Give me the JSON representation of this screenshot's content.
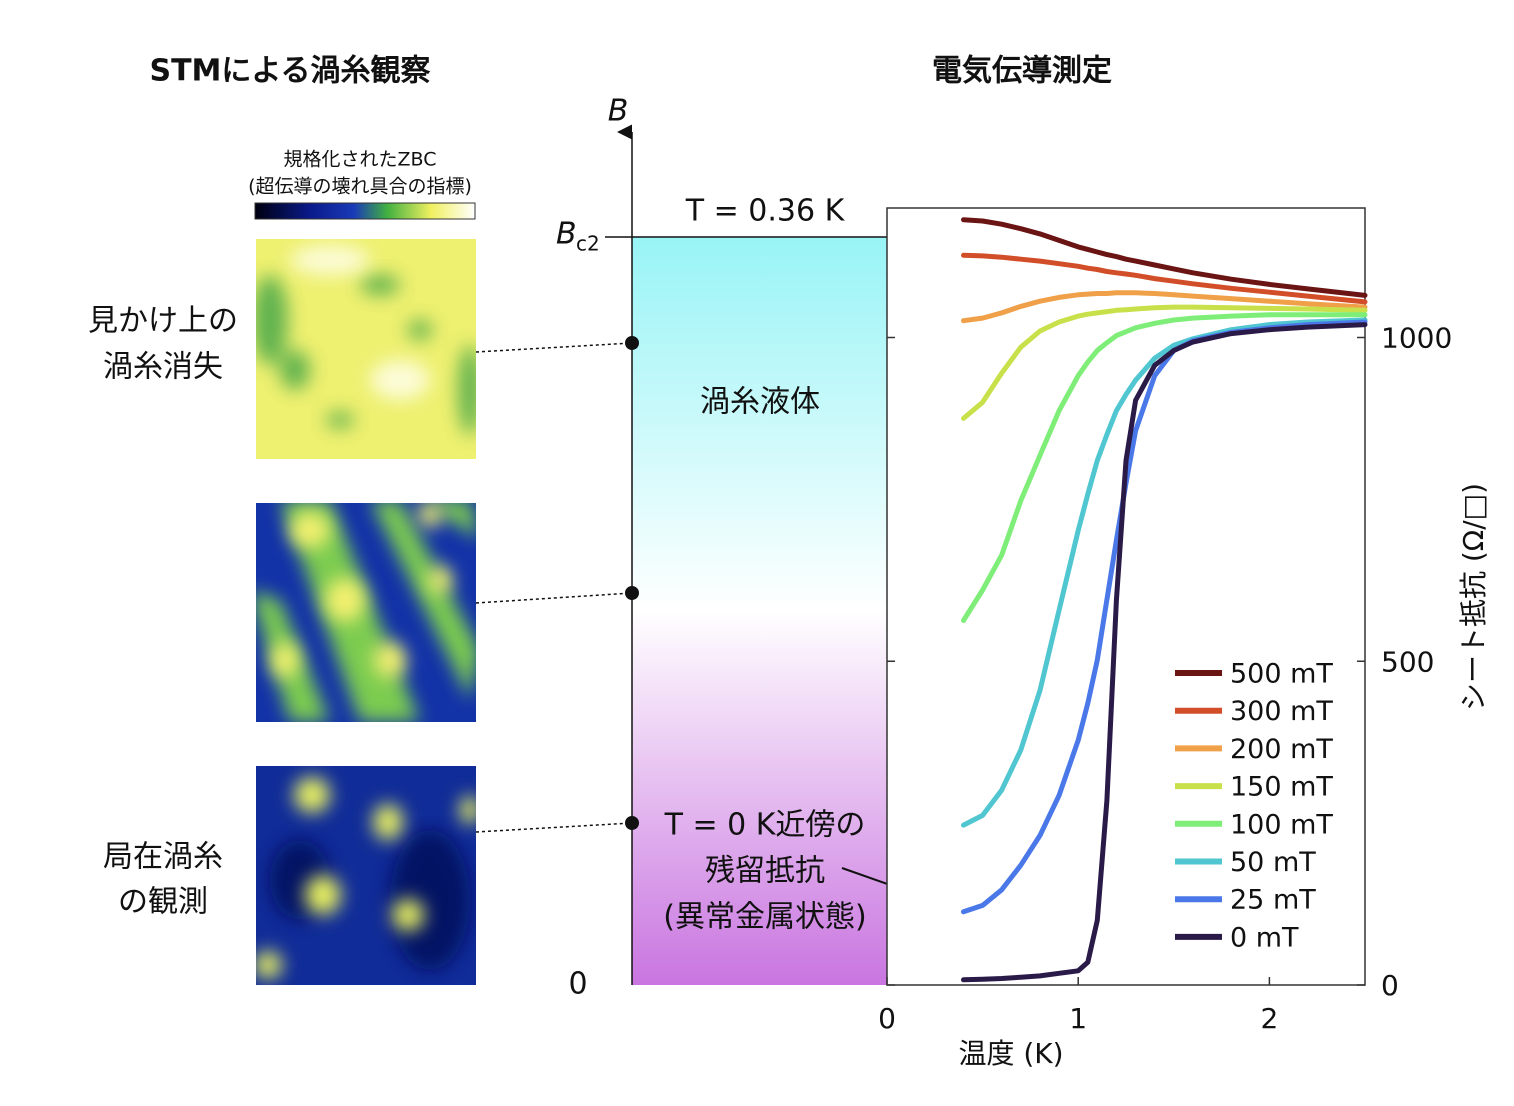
{
  "titles": {
    "stm": "STMによる渦糸観察",
    "transport": "電気伝導測定"
  },
  "colorbar": {
    "label": [
      "規格化されたZBC",
      "(超伝導の壊れ具合の指標)"
    ]
  },
  "stm_labels": {
    "vanished": [
      "見かけ上の",
      "渦糸消失"
    ],
    "localized": [
      "局在渦糸",
      "の観測"
    ]
  },
  "phase_diagram": {
    "axis_label": "B",
    "bc2_label": "B",
    "bc2_subscript": "c2",
    "zero_label": "0",
    "temperature": "T = 0.36 K",
    "region_label": "渦糸液体",
    "annotation": [
      "T = 0 K近傍の",
      "残留抵抗",
      "(異常金属状態)"
    ]
  },
  "chart_data": {
    "type": "line",
    "x_label": "温度 (K)",
    "y_label": "シート抵抗 (Ω/□)",
    "y_axis_side": "right",
    "grid": false,
    "xlim": [
      0,
      2.5
    ],
    "xticks": [
      0,
      1,
      2
    ],
    "ylim": [
      0,
      1200
    ],
    "yticks": [
      0,
      500,
      1000
    ],
    "x": [
      0.4,
      0.5,
      0.6,
      0.7,
      0.8,
      0.9,
      1.0,
      1.05,
      1.1,
      1.15,
      1.2,
      1.25,
      1.3,
      1.4,
      1.5,
      1.6,
      1.8,
      2.0,
      2.2,
      2.5
    ],
    "series": [
      {
        "name": "500 mT",
        "color": "#6b1414",
        "values": [
          1182,
          1180,
          1175,
          1168,
          1160,
          1150,
          1140,
          1136,
          1132,
          1128,
          1125,
          1121,
          1118,
          1112,
          1106,
          1100,
          1090,
          1082,
          1075,
          1065
        ]
      },
      {
        "name": "300 mT",
        "color": "#d24e28",
        "values": [
          1127,
          1126,
          1124,
          1121,
          1118,
          1114,
          1110,
          1107,
          1105,
          1102,
          1100,
          1098,
          1096,
          1091,
          1087,
          1083,
          1076,
          1070,
          1064,
          1055
        ]
      },
      {
        "name": "200 mT",
        "color": "#f0a048",
        "values": [
          1026,
          1030,
          1038,
          1048,
          1056,
          1062,
          1066,
          1067,
          1068,
          1068,
          1069,
          1069,
          1069,
          1068,
          1066,
          1064,
          1060,
          1056,
          1052,
          1047
        ]
      },
      {
        "name": "150 mT",
        "color": "#c8e04a",
        "values": [
          875,
          900,
          945,
          985,
          1010,
          1024,
          1033,
          1036,
          1038,
          1040,
          1042,
          1043,
          1044,
          1046,
          1047,
          1047,
          1046,
          1045,
          1044,
          1042
        ]
      },
      {
        "name": "100 mT",
        "color": "#7eee78",
        "values": [
          563,
          610,
          664,
          748,
          818,
          887,
          941,
          962,
          980,
          992,
          1003,
          1009,
          1015,
          1022,
          1027,
          1030,
          1033,
          1035,
          1035,
          1035
        ]
      },
      {
        "name": "50 mT",
        "color": "#50c6d0",
        "values": [
          247,
          262,
          301,
          363,
          455,
          579,
          702,
          758,
          810,
          850,
          887,
          912,
          934,
          968,
          988,
          998,
          1012,
          1020,
          1024,
          1027
        ]
      },
      {
        "name": "25 mT",
        "color": "#4a78e8",
        "values": [
          113,
          123,
          147,
          185,
          231,
          293,
          378,
          435,
          502,
          595,
          687,
          775,
          856,
          941,
          980,
          995,
          1008,
          1015,
          1020,
          1024
        ]
      },
      {
        "name": "0 mT",
        "color": "#2a1a48",
        "values": [
          8,
          9,
          10,
          12,
          14,
          18,
          22,
          35,
          100,
          285,
          594,
          810,
          903,
          957,
          980,
          993,
          1006,
          1012,
          1016,
          1020
        ]
      }
    ]
  }
}
